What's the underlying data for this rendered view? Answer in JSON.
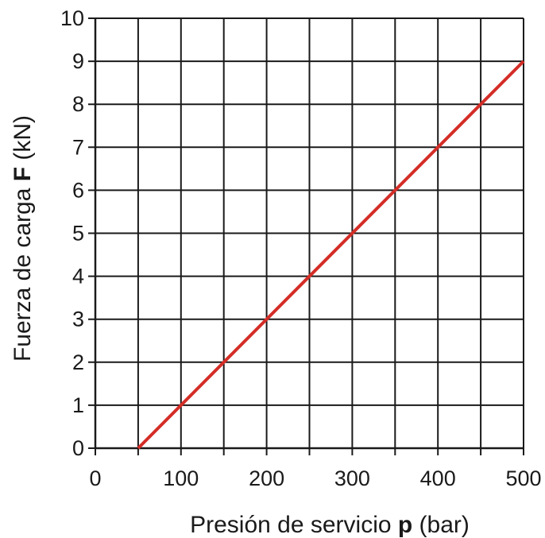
{
  "chart_data": {
    "type": "line",
    "xlabel_prefix": "Presión de servicio ",
    "xlabel_var": "p",
    "xlabel_suffix": " (bar)",
    "ylabel_prefix": "Fuerza de carga ",
    "ylabel_var": "F",
    "ylabel_suffix": " (kN)",
    "xlim": [
      0,
      500
    ],
    "ylim": [
      0,
      10
    ],
    "xticks": [
      0,
      100,
      200,
      300,
      400,
      500
    ],
    "yticks": [
      0,
      1,
      2,
      3,
      4,
      5,
      6,
      7,
      8,
      9,
      10
    ],
    "x_gridlines": [
      0,
      50,
      100,
      150,
      200,
      250,
      300,
      350,
      400,
      450,
      500
    ],
    "y_gridlines": [
      0,
      1,
      2,
      3,
      4,
      5,
      6,
      7,
      8,
      9,
      10
    ],
    "grid": true,
    "series": [
      {
        "color": "#d42d27",
        "x": [
          50,
          500
        ],
        "y": [
          0,
          9
        ]
      }
    ]
  }
}
